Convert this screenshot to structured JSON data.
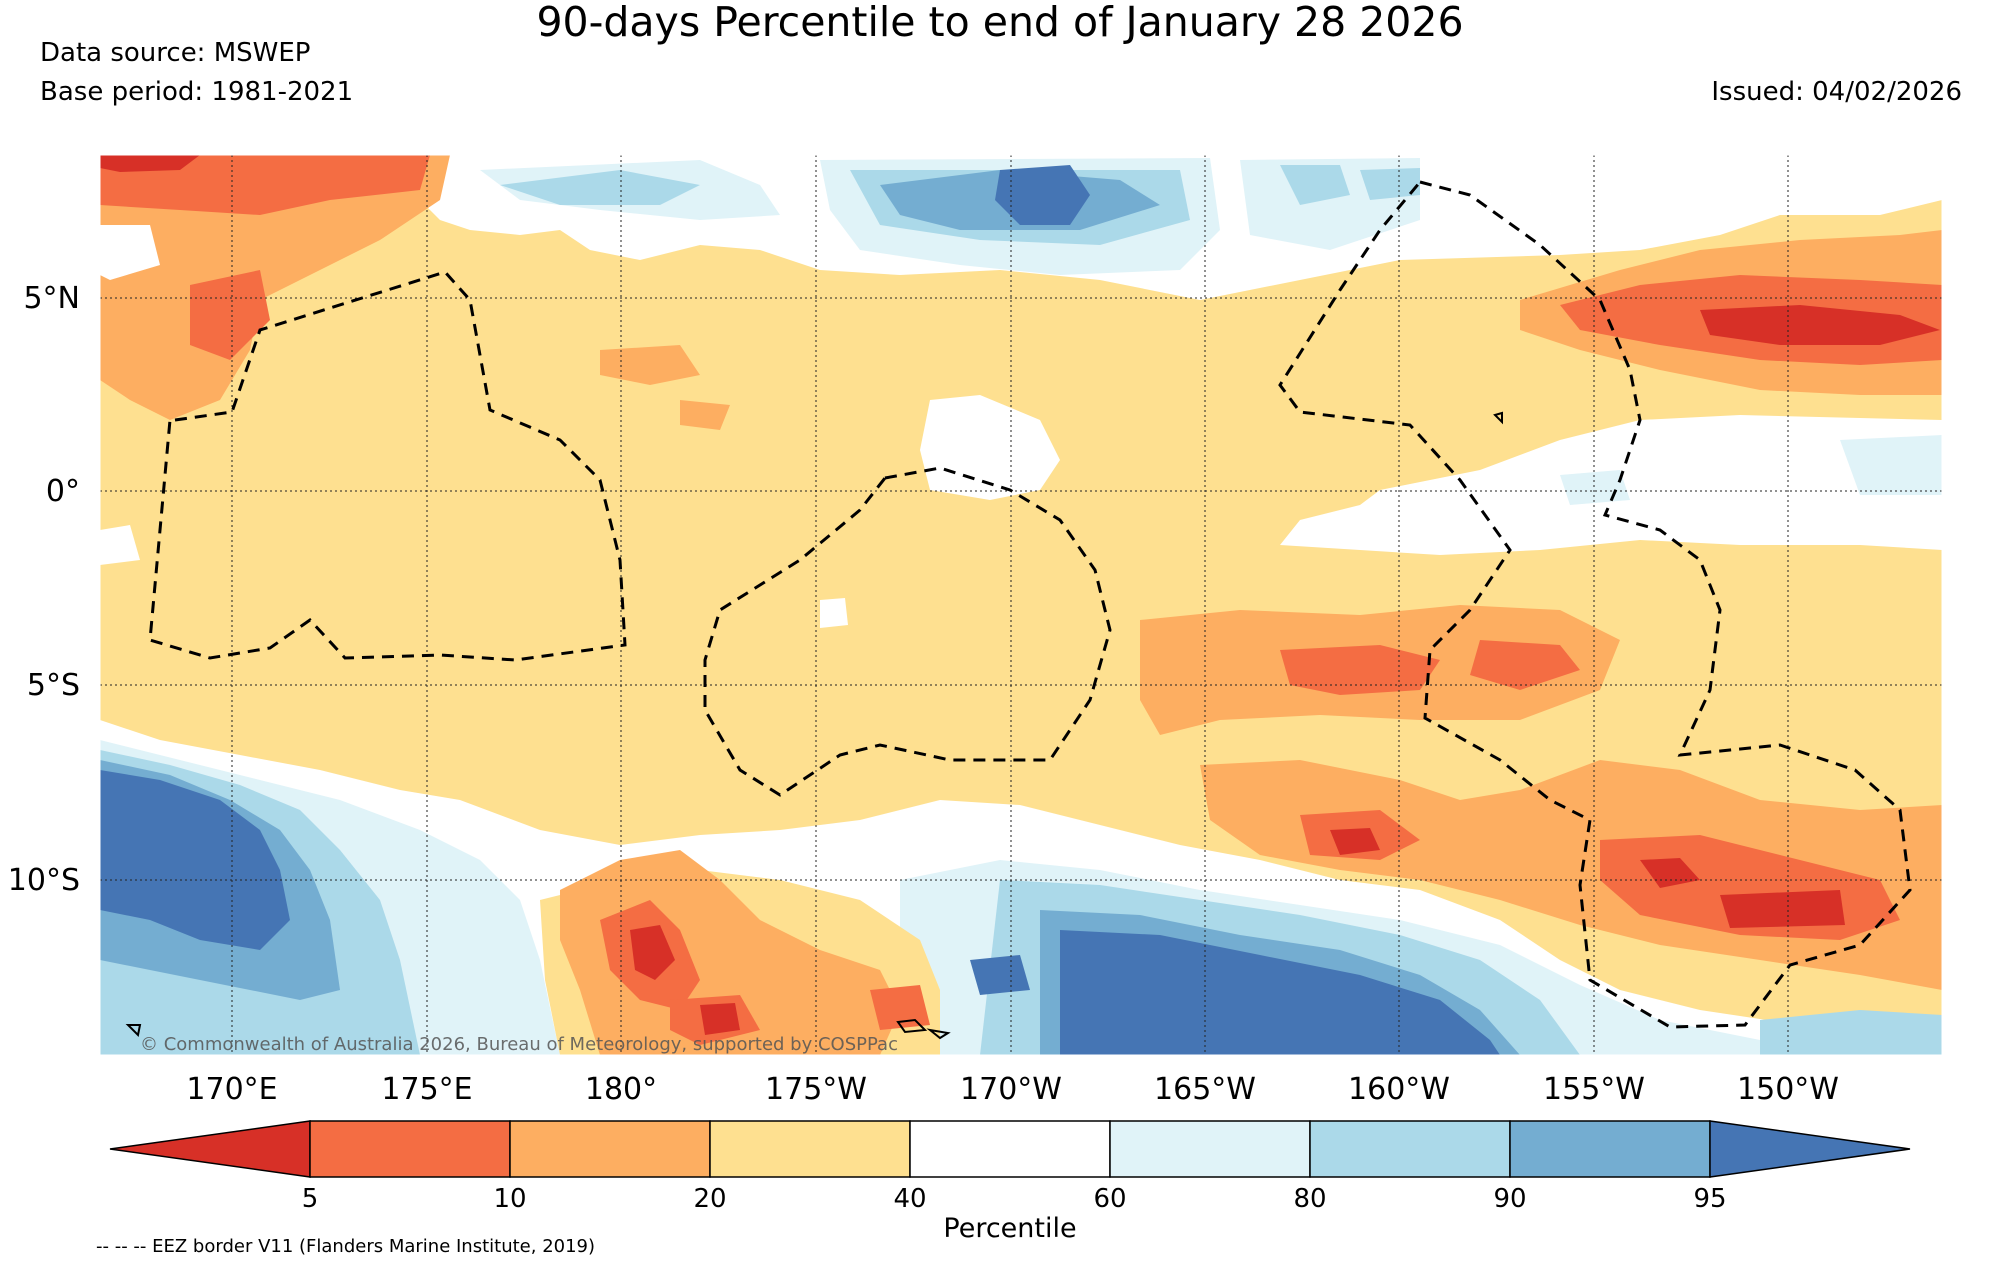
{
  "title": "90-days Percentile to end of January 28 2026",
  "data_source": "Data source: MSWEP",
  "base_period": "Base period: 1981-2021",
  "issued": "Issued: 04/02/2026",
  "copyright": "© Commonwealth of Australia 2026, Bureau of Meteorology, supported by COSPPac",
  "eez_note": "-- -- -- EEZ border V11 (Flanders Marine Institute, 2019)",
  "lat_labels": [
    "5°N",
    "0°",
    "5°S",
    "10°S"
  ],
  "lon_labels": [
    "170°E",
    "175°E",
    "180°",
    "175°W",
    "170°W",
    "165°W",
    "160°W",
    "155°W",
    "150°W"
  ],
  "colorbar": {
    "label": "Percentile",
    "ticks": [
      "5",
      "10",
      "20",
      "40",
      "60",
      "80",
      "90",
      "95"
    ],
    "bins": [
      {
        "range": "<5",
        "color": "#d73027"
      },
      {
        "range": "5-10",
        "color": "#f46d43"
      },
      {
        "range": "10-20",
        "color": "#fdae61"
      },
      {
        "range": "20-40",
        "color": "#fee090"
      },
      {
        "range": "40-60",
        "color": "#ffffff"
      },
      {
        "range": "60-80",
        "color": "#e0f3f8"
      },
      {
        "range": "80-90",
        "color": "#abd9e9"
      },
      {
        "range": "90-95",
        "color": "#74add1"
      },
      {
        "range": ">95",
        "color": "#4575b4"
      }
    ]
  }
}
